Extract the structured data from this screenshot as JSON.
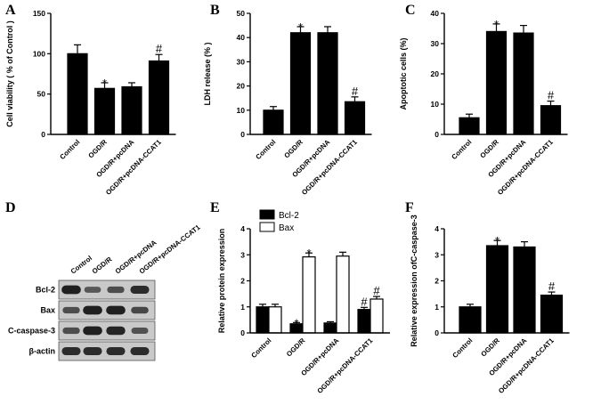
{
  "figure": {
    "blot": {
      "letter": "D",
      "lanes": [
        "Control",
        "OGD/R",
        "OGD/R+pcDNA",
        "OGD/R+pcDNA-CCAT1"
      ],
      "rows": [
        {
          "label": "Bcl-2",
          "intensity": [
            0.95,
            0.45,
            0.55,
            0.85
          ]
        },
        {
          "label": "Bax",
          "intensity": [
            0.55,
            0.95,
            0.95,
            0.6
          ]
        },
        {
          "label": "C-caspase-3",
          "intensity": [
            0.55,
            0.95,
            0.9,
            0.5
          ]
        },
        {
          "label": "β-actin",
          "intensity": [
            0.85,
            0.85,
            0.85,
            0.85
          ]
        }
      ]
    }
  },
  "chart_data": [
    {
      "panel": "A",
      "type": "bar",
      "categories": [
        "Control",
        "OGD/R",
        "OGD/R+pcDNA",
        "OGD/R+pcDNA-CCAT1"
      ],
      "values": [
        100,
        57,
        59,
        91
      ],
      "errors": [
        11,
        7,
        5,
        8
      ],
      "markers": [
        "",
        "*",
        "",
        "#"
      ],
      "ylabel": "Cell viability ( % of Control )",
      "ylim": [
        0,
        150
      ],
      "yticks": [
        0,
        50,
        100,
        150
      ],
      "tick_labels": [
        "0",
        "50",
        "100",
        "150"
      ]
    },
    {
      "panel": "B",
      "type": "bar",
      "categories": [
        "Control",
        "OGD/R",
        "OGD/R+pcDNA",
        "OGD/R+pcDNA-CCAT1"
      ],
      "values": [
        10,
        42,
        42,
        13.5
      ],
      "errors": [
        1.5,
        2.5,
        2.5,
        2
      ],
      "markers": [
        "",
        "*",
        "",
        "#"
      ],
      "ylabel": "LDH release (% )",
      "ylim": [
        0,
        50
      ],
      "yticks": [
        0,
        10,
        20,
        30,
        40,
        50
      ],
      "tick_labels": [
        "0",
        "10",
        "20",
        "30",
        "40",
        "50"
      ]
    },
    {
      "panel": "C",
      "type": "bar",
      "categories": [
        "Control",
        "OGD/R",
        "OGD/R+pcDNA",
        "OGD/R+pcDNA-CCAT1"
      ],
      "values": [
        5.5,
        34,
        33.5,
        9.5
      ],
      "errors": [
        1.2,
        2.5,
        2.5,
        1.5
      ],
      "markers": [
        "",
        "*",
        "",
        "#"
      ],
      "ylabel": "Apoptotic cells (%)",
      "ylim": [
        0,
        40
      ],
      "yticks": [
        0,
        10,
        20,
        30,
        40
      ],
      "tick_labels": [
        "0",
        "10",
        "20",
        "30",
        "40"
      ]
    },
    {
      "panel": "E",
      "type": "bar",
      "categories": [
        "Control",
        "OGD/R",
        "OGD/R+pcDNA",
        "OGD/R+pcDNA-CCAT1"
      ],
      "series": [
        {
          "name": "Bcl-2",
          "values": [
            1.0,
            0.35,
            0.38,
            0.9
          ],
          "errors": [
            0.1,
            0.05,
            0.05,
            0.08
          ],
          "markers": [
            "",
            "*",
            "",
            "#"
          ],
          "fill": "#000000"
        },
        {
          "name": "Bax",
          "values": [
            1.0,
            2.92,
            2.95,
            1.3
          ],
          "errors": [
            0.1,
            0.15,
            0.15,
            0.1
          ],
          "markers": [
            "",
            "*",
            "",
            "#"
          ],
          "fill": "#ffffff"
        }
      ],
      "ylabel": "Relative protein expression",
      "ylim": [
        0,
        4
      ],
      "yticks": [
        0,
        1,
        2,
        3,
        4
      ],
      "tick_labels": [
        "0",
        "1",
        "2",
        "3",
        "4"
      ],
      "legend": "top-left"
    },
    {
      "panel": "F",
      "type": "bar",
      "categories": [
        "Control",
        "OGD/R",
        "OGD/R+pcDNA",
        "OGD/R+pcDNA-CCAT1"
      ],
      "values": [
        1.0,
        3.35,
        3.3,
        1.45
      ],
      "errors": [
        0.1,
        0.2,
        0.2,
        0.12
      ],
      "markers": [
        "",
        "*",
        "",
        "#"
      ],
      "ylabel": "Relative expression ofC-caspase-3",
      "ylim": [
        0,
        4
      ],
      "yticks": [
        0,
        1,
        2,
        3,
        4
      ],
      "tick_labels": [
        "0",
        "1",
        "2",
        "3",
        "4"
      ]
    }
  ]
}
